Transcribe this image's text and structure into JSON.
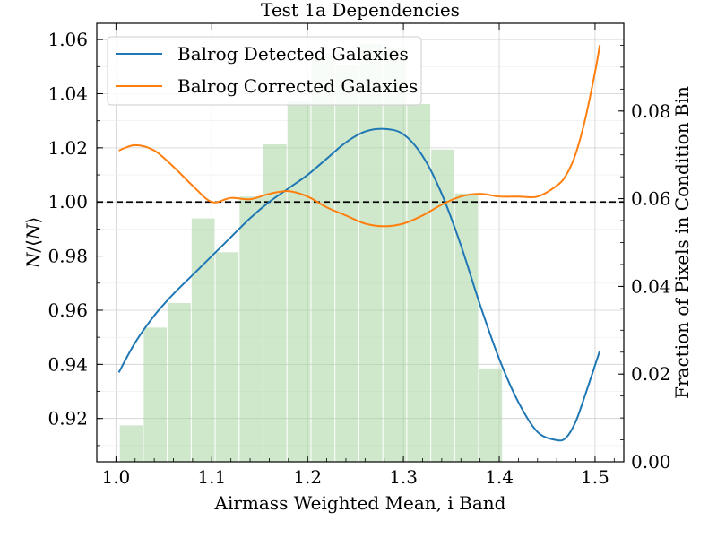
{
  "chart_data": {
    "type": "line",
    "title": "Test 1a Dependencies",
    "xlabel": "Airmass Weighted Mean, i Band",
    "ylabel": "N/⟨N⟩",
    "ylabel_parts": [
      "N",
      "/⟨",
      "N",
      "⟩"
    ],
    "y2label": "Fraction of Pixels in Condition Bin",
    "xlim": [
      0.98,
      1.53
    ],
    "ylim": [
      0.904,
      1.066
    ],
    "y2lim": [
      0.0,
      0.1
    ],
    "x_ticks": [
      "1.0",
      "1.1",
      "1.2",
      "1.3",
      "1.4",
      "1.5"
    ],
    "x_tick_values": [
      1.0,
      1.1,
      1.2,
      1.3,
      1.4,
      1.5
    ],
    "y_ticks": [
      "0.92",
      "0.94",
      "0.96",
      "0.98",
      "1.00",
      "1.02",
      "1.04",
      "1.06"
    ],
    "y_tick_values": [
      0.92,
      0.94,
      0.96,
      0.98,
      1.0,
      1.02,
      1.04,
      1.06
    ],
    "y2_ticks": [
      "0.00",
      "0.02",
      "0.04",
      "0.06",
      "0.08"
    ],
    "y2_tick_values": [
      0.0,
      0.02,
      0.04,
      0.06,
      0.08
    ],
    "grid": true,
    "legend_position": "top-left",
    "reference_line": {
      "y": 1.0,
      "style": "dashed",
      "color": "#000000"
    },
    "series": [
      {
        "name": "Balrog Detected Galaxies",
        "color": "#1f77b4",
        "x": [
          1.003,
          1.02,
          1.04,
          1.06,
          1.08,
          1.1,
          1.12,
          1.14,
          1.16,
          1.18,
          1.2,
          1.22,
          1.24,
          1.26,
          1.28,
          1.3,
          1.32,
          1.34,
          1.36,
          1.38,
          1.4,
          1.42,
          1.44,
          1.46,
          1.47,
          1.48,
          1.49,
          1.505
        ],
        "y": [
          0.937,
          0.948,
          0.958,
          0.966,
          0.973,
          0.98,
          0.987,
          0.994,
          1.0,
          1.005,
          1.01,
          1.016,
          1.022,
          1.026,
          1.027,
          1.025,
          1.017,
          1.003,
          0.984,
          0.962,
          0.942,
          0.926,
          0.915,
          0.912,
          0.913,
          0.919,
          0.929,
          0.945
        ]
      },
      {
        "name": "Balrog Corrected Galaxies",
        "color": "#ff7f0e",
        "x": [
          1.003,
          1.02,
          1.04,
          1.06,
          1.08,
          1.1,
          1.12,
          1.14,
          1.16,
          1.18,
          1.2,
          1.22,
          1.24,
          1.26,
          1.28,
          1.3,
          1.32,
          1.34,
          1.36,
          1.38,
          1.4,
          1.42,
          1.44,
          1.46,
          1.47,
          1.48,
          1.49,
          1.5,
          1.505
        ],
        "y": [
          1.019,
          1.021,
          1.019,
          1.013,
          1.006,
          1.0,
          1.0015,
          1.001,
          1.003,
          1.004,
          1.002,
          0.998,
          0.995,
          0.992,
          0.991,
          0.992,
          0.995,
          0.999,
          1.002,
          1.003,
          1.002,
          1.002,
          1.002,
          1.006,
          1.01,
          1.018,
          1.031,
          1.048,
          1.058
        ]
      }
    ],
    "histogram": {
      "color": "#a8d5a2",
      "opacity": 0.55,
      "bins": [
        {
          "x0": 1.004,
          "x1": 1.028,
          "value": 0.0083
        },
        {
          "x0": 1.029,
          "x1": 1.053,
          "value": 0.0306
        },
        {
          "x0": 1.054,
          "x1": 1.078,
          "value": 0.0362
        },
        {
          "x0": 1.079,
          "x1": 1.103,
          "value": 0.0555
        },
        {
          "x0": 1.104,
          "x1": 1.128,
          "value": 0.0478
        },
        {
          "x0": 1.129,
          "x1": 1.153,
          "value": 0.0605
        },
        {
          "x0": 1.154,
          "x1": 1.178,
          "value": 0.0724
        },
        {
          "x0": 1.179,
          "x1": 1.203,
          "value": 0.0822
        },
        {
          "x0": 1.204,
          "x1": 1.228,
          "value": 0.0928
        },
        {
          "x0": 1.229,
          "x1": 1.253,
          "value": 0.0905
        },
        {
          "x0": 1.254,
          "x1": 1.278,
          "value": 0.0954
        },
        {
          "x0": 1.279,
          "x1": 1.303,
          "value": 0.0945
        },
        {
          "x0": 1.304,
          "x1": 1.328,
          "value": 0.0816
        },
        {
          "x0": 1.329,
          "x1": 1.353,
          "value": 0.0712
        },
        {
          "x0": 1.354,
          "x1": 1.378,
          "value": 0.0612
        },
        {
          "x0": 1.379,
          "x1": 1.403,
          "value": 0.0213
        }
      ]
    }
  }
}
